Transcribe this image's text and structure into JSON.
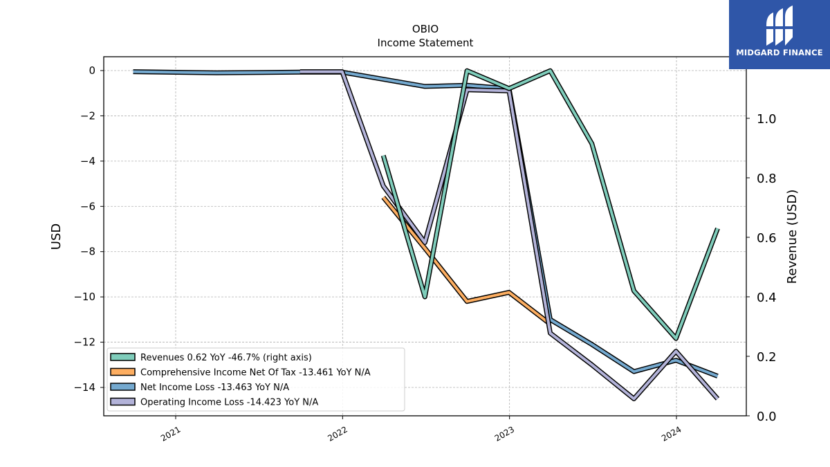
{
  "logo": {
    "text": "MIDGARD FINANCE"
  },
  "chart_data": {
    "type": "line",
    "title": "OBIO",
    "subtitle": "Income Statement",
    "ylabel": "USD",
    "ylabel_right": "Revenue (USD)",
    "xlabel": "",
    "x_ticks": [
      "2021",
      "2022",
      "2023",
      "2024"
    ],
    "y_ticks": [
      "0",
      "−2",
      "−4",
      "−6",
      "−8",
      "−10",
      "−12",
      "−14"
    ],
    "y_right_ticks": [
      "0.0",
      "0.2",
      "0.4",
      "0.6",
      "0.8",
      "1.0"
    ],
    "ylim": [
      -15.3,
      0.65
    ],
    "ylim_right": [
      0.0,
      1.16
    ],
    "grid": true,
    "legend_position": "lower-left",
    "series": [
      {
        "name": "Revenues  0.62 YoY -46.7% (right axis)",
        "axis": "right",
        "color": "#7fcdbb",
        "points": [
          [
            "2022-03-31",
            0.875
          ],
          [
            "2022-06-30",
            0.4
          ],
          [
            "2022-09-30",
            1.16
          ],
          [
            "2022-12-31",
            1.1
          ],
          [
            "2023-03-31",
            1.16
          ],
          [
            "2023-06-30",
            0.915
          ],
          [
            "2023-09-30",
            0.42
          ],
          [
            "2023-12-31",
            0.26
          ],
          [
            "2024-03-31",
            0.63
          ]
        ]
      },
      {
        "name": "Comprehensive Income Net Of Tax  -13.461 YoY N/A",
        "axis": "left",
        "color": "#fdae61",
        "points": [
          [
            "2022-03-31",
            -5.6
          ],
          [
            "2022-06-30",
            -7.85
          ],
          [
            "2022-09-30",
            -10.2
          ],
          [
            "2022-12-31",
            -9.8
          ],
          [
            "2023-03-31",
            -11.2
          ]
        ]
      },
      {
        "name": "Net Income Loss  -13.463 YoY N/A",
        "axis": "left",
        "color": "#74a9cf",
        "points": [
          [
            "2020-09-30",
            -0.05
          ],
          [
            "2021-03-31",
            -0.1
          ],
          [
            "2021-09-30",
            -0.07
          ],
          [
            "2021-12-31",
            -0.07
          ],
          [
            "2022-06-30",
            -0.7
          ],
          [
            "2022-09-30",
            -0.65
          ],
          [
            "2022-12-31",
            -0.8
          ],
          [
            "2023-03-31",
            -11.0
          ],
          [
            "2023-06-30",
            -12.1
          ],
          [
            "2023-09-30",
            -13.3
          ],
          [
            "2023-12-31",
            -12.8
          ],
          [
            "2024-03-31",
            -13.5
          ]
        ]
      },
      {
        "name": "Operating Income Loss  -14.423 YoY N/A",
        "axis": "left",
        "color": "#b3b3d9",
        "points": [
          [
            "2021-09-30",
            -0.05
          ],
          [
            "2021-12-31",
            -0.05
          ],
          [
            "2022-03-31",
            -5.1
          ],
          [
            "2022-06-30",
            -7.6
          ],
          [
            "2022-09-30",
            -0.85
          ],
          [
            "2022-12-31",
            -0.9
          ],
          [
            "2023-03-31",
            -11.6
          ],
          [
            "2023-06-30",
            -13.0
          ],
          [
            "2023-09-30",
            -14.5
          ],
          [
            "2023-12-31",
            -12.4
          ],
          [
            "2024-03-31",
            -14.5
          ]
        ]
      }
    ]
  }
}
